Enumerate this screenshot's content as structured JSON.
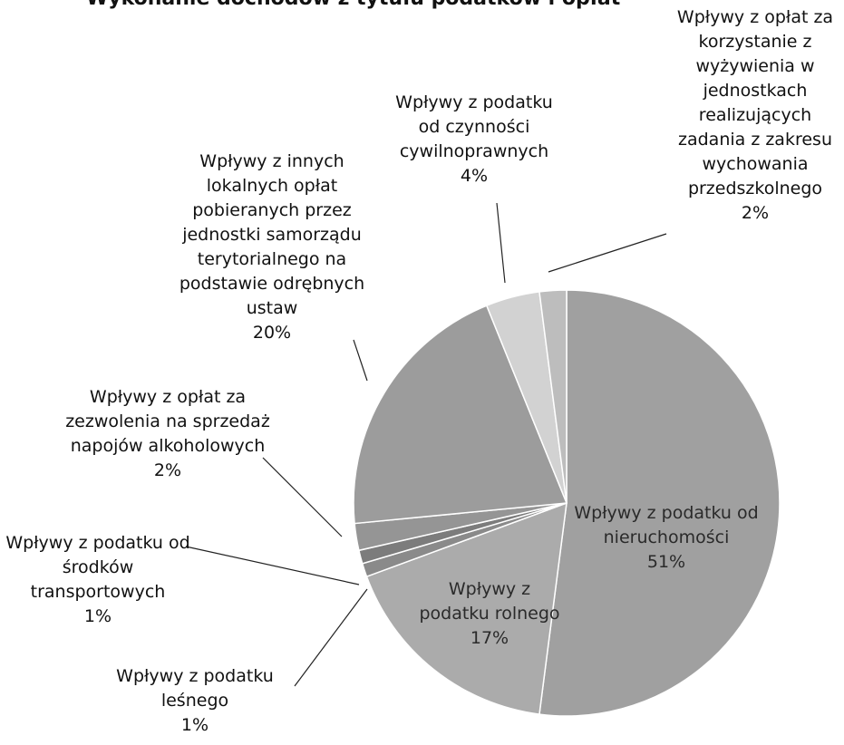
{
  "chart_data": {
    "type": "pie",
    "title": "Wykonanie dochodów z tytułu podatków i opłat",
    "categories": [
      "Wpływy z podatku od nieruchomości",
      "Wpływy z podatku rolnego",
      "Wpływy z podatku leśnego",
      "Wpływy z podatku od środków transportowych",
      "Wpływy z opłat za zezwolenia na sprzedaż napojów alkoholowych",
      "Wpływy z innych lokalnych opłat pobieranych przez jednostki samorządu terytorialnego na podstawie odrębnych ustaw",
      "Wpływy z podatku od czynności cywilnoprawnych",
      "Wpływy z opłat za korzystanie z wyżywienia w jednostkach realizujących zadania z zakresu wychowania przedszkolnego"
    ],
    "values": [
      51,
      17,
      1,
      1,
      2,
      20,
      4,
      2
    ],
    "value_labels": [
      "51%",
      "17%",
      "1%",
      "1%",
      "2%",
      "20%",
      "4%",
      "2%"
    ],
    "colors": [
      "#a0a0a0",
      "#ababab",
      "#8a8a8a",
      "#7c7c7c",
      "#959595",
      "#9c9c9c",
      "#d2d2d2",
      "#bdbdbd"
    ]
  }
}
